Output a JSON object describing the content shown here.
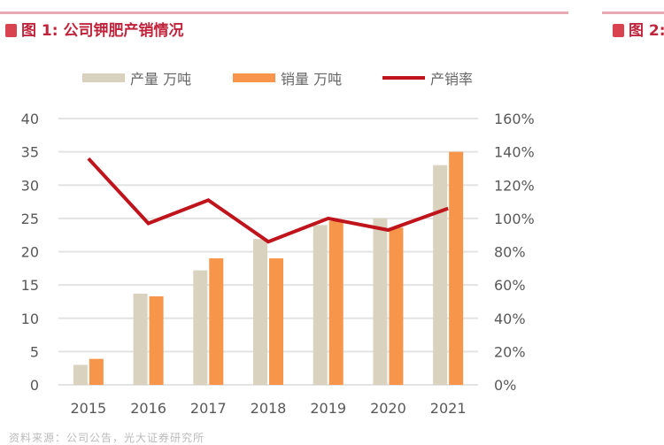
{
  "figure1": {
    "title_num": "图 1:",
    "title_text": "公司钾肥产销情况"
  },
  "figure2": {
    "title_num": "图 2:"
  },
  "legend": [
    {
      "label": "产量 万吨",
      "color": "#d9d2bf",
      "kind": "bar"
    },
    {
      "label": "销量 万吨",
      "color": "#f7954b",
      "kind": "bar"
    },
    {
      "label": "产销率",
      "color": "#c0141c",
      "kind": "line"
    }
  ],
  "colors": {
    "accent": "#c0243c",
    "production": "#d9d2bf",
    "sales": "#f7954b",
    "ratio_line": "#c0141c",
    "grid": "#e3e3e3",
    "axis_text": "#595959"
  },
  "source_text": "资料来源：公司公告，光大证券研究所",
  "chart_data": {
    "type": "bar",
    "title": "公司钾肥产销情况",
    "categories": [
      "2015",
      "2016",
      "2017",
      "2018",
      "2019",
      "2020",
      "2021"
    ],
    "series": [
      {
        "name": "产量 万吨",
        "type": "bar",
        "axis": "left",
        "values": [
          3.0,
          13.7,
          17.2,
          21.9,
          24.0,
          25.0,
          33.0
        ]
      },
      {
        "name": "销量 万吨",
        "type": "bar",
        "axis": "left",
        "values": [
          3.9,
          13.3,
          19.0,
          19.0,
          24.6,
          23.6,
          35.0
        ]
      },
      {
        "name": "产销率",
        "type": "line",
        "axis": "right",
        "values": [
          1.36,
          0.97,
          1.11,
          0.86,
          1.0,
          0.93,
          1.06
        ]
      }
    ],
    "xlabel": "",
    "ylabel": "万吨",
    "ylabel_right": "产销率",
    "ylim": [
      0,
      40
    ],
    "ylim_right": [
      0,
      1.6
    ],
    "yticks": [
      "0",
      "5",
      "10",
      "15",
      "20",
      "25",
      "30",
      "35",
      "40"
    ],
    "yticks_right": [
      "0%",
      "20%",
      "40%",
      "60%",
      "80%",
      "100%",
      "120%",
      "140%",
      "160%"
    ],
    "grid": true,
    "legend_position": "top"
  }
}
